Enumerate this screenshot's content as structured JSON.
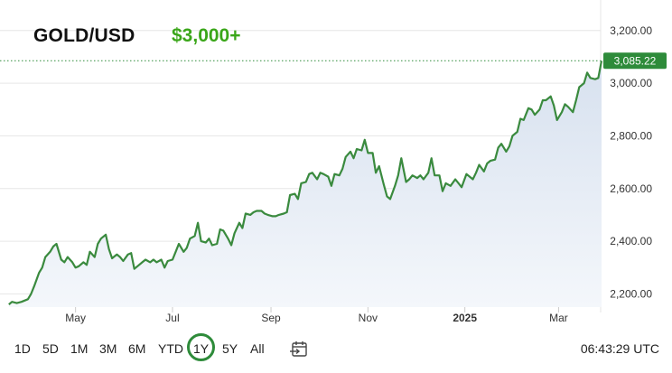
{
  "header": {
    "symbol": "GOLD/USD",
    "annotation": "$3,000+",
    "annotation_color": "#3aa619"
  },
  "toolbar": {
    "ranges": [
      "1D",
      "5D",
      "1M",
      "3M",
      "6M",
      "YTD",
      "1Y",
      "5Y",
      "All"
    ],
    "active_range": "1Y",
    "active_color": "#2e8b3a",
    "calendar_icon": "calendar-arrow-icon",
    "clock_text": "06:43:29 UTC"
  },
  "chart_data": {
    "type": "area",
    "line_color": "#3a8a3e",
    "area_color_top": "#d7e1ef",
    "area_color_bottom": "#f4f7fb",
    "last_value_label": "3,085.22",
    "last_value_badge_color": "#2e8b3a",
    "ylim": [
      2150,
      3230
    ],
    "y_ticks": [
      {
        "value": 2200,
        "label": "2,200.00"
      },
      {
        "value": 2400,
        "label": "2,400.00"
      },
      {
        "value": 2600,
        "label": "2,600.00"
      },
      {
        "value": 2800,
        "label": "2,800.00"
      },
      {
        "value": 3000,
        "label": "3,000.00"
      },
      {
        "value": 3200,
        "label": "3,200.00"
      }
    ],
    "x_ticks": [
      {
        "date": "2024-05-01",
        "label": "May",
        "bold": false
      },
      {
        "date": "2024-07-01",
        "label": "Jul",
        "bold": false
      },
      {
        "date": "2024-09-01",
        "label": "Sep",
        "bold": false
      },
      {
        "date": "2024-11-01",
        "label": "Nov",
        "bold": false
      },
      {
        "date": "2025-01-01",
        "label": "2025",
        "bold": true
      },
      {
        "date": "2025-03-01",
        "label": "Mar",
        "bold": false
      }
    ],
    "xlim": [
      "2024-03-19",
      "2025-04-01"
    ],
    "grid": "horizontal",
    "series": [
      {
        "points": [
          [
            "2024-03-20",
            2160
          ],
          [
            "2024-03-22",
            2170
          ],
          [
            "2024-03-25",
            2165
          ],
          [
            "2024-03-28",
            2170
          ],
          [
            "2024-04-01",
            2180
          ],
          [
            "2024-04-03",
            2200
          ],
          [
            "2024-04-05",
            2230
          ],
          [
            "2024-04-08",
            2280
          ],
          [
            "2024-04-10",
            2300
          ],
          [
            "2024-04-12",
            2340
          ],
          [
            "2024-04-15",
            2360
          ],
          [
            "2024-04-17",
            2380
          ],
          [
            "2024-04-19",
            2390
          ],
          [
            "2024-04-22",
            2330
          ],
          [
            "2024-04-24",
            2320
          ],
          [
            "2024-04-26",
            2340
          ],
          [
            "2024-04-29",
            2320
          ],
          [
            "2024-05-01",
            2300
          ],
          [
            "2024-05-03",
            2305
          ],
          [
            "2024-05-06",
            2320
          ],
          [
            "2024-05-08",
            2310
          ],
          [
            "2024-05-10",
            2360
          ],
          [
            "2024-05-13",
            2340
          ],
          [
            "2024-05-15",
            2390
          ],
          [
            "2024-05-17",
            2410
          ],
          [
            "2024-05-20",
            2425
          ],
          [
            "2024-05-22",
            2370
          ],
          [
            "2024-05-24",
            2335
          ],
          [
            "2024-05-27",
            2350
          ],
          [
            "2024-05-29",
            2340
          ],
          [
            "2024-05-31",
            2325
          ],
          [
            "2024-06-03",
            2350
          ],
          [
            "2024-06-05",
            2355
          ],
          [
            "2024-06-07",
            2295
          ],
          [
            "2024-06-10",
            2310
          ],
          [
            "2024-06-12",
            2320
          ],
          [
            "2024-06-14",
            2330
          ],
          [
            "2024-06-17",
            2320
          ],
          [
            "2024-06-19",
            2330
          ],
          [
            "2024-06-21",
            2320
          ],
          [
            "2024-06-24",
            2330
          ],
          [
            "2024-06-26",
            2300
          ],
          [
            "2024-06-28",
            2325
          ],
          [
            "2024-07-01",
            2330
          ],
          [
            "2024-07-03",
            2360
          ],
          [
            "2024-07-05",
            2390
          ],
          [
            "2024-07-08",
            2360
          ],
          [
            "2024-07-10",
            2375
          ],
          [
            "2024-07-12",
            2410
          ],
          [
            "2024-07-15",
            2420
          ],
          [
            "2024-07-17",
            2470
          ],
          [
            "2024-07-19",
            2400
          ],
          [
            "2024-07-22",
            2395
          ],
          [
            "2024-07-24",
            2410
          ],
          [
            "2024-07-26",
            2385
          ],
          [
            "2024-07-29",
            2390
          ],
          [
            "2024-07-31",
            2445
          ],
          [
            "2024-08-02",
            2440
          ],
          [
            "2024-08-05",
            2410
          ],
          [
            "2024-08-07",
            2385
          ],
          [
            "2024-08-09",
            2430
          ],
          [
            "2024-08-12",
            2470
          ],
          [
            "2024-08-14",
            2450
          ],
          [
            "2024-08-16",
            2505
          ],
          [
            "2024-08-19",
            2500
          ],
          [
            "2024-08-21",
            2510
          ],
          [
            "2024-08-23",
            2515
          ],
          [
            "2024-08-26",
            2515
          ],
          [
            "2024-08-28",
            2505
          ],
          [
            "2024-08-30",
            2500
          ],
          [
            "2024-09-02",
            2495
          ],
          [
            "2024-09-04",
            2495
          ],
          [
            "2024-09-06",
            2500
          ],
          [
            "2024-09-09",
            2505
          ],
          [
            "2024-09-11",
            2510
          ],
          [
            "2024-09-13",
            2575
          ],
          [
            "2024-09-16",
            2580
          ],
          [
            "2024-09-18",
            2560
          ],
          [
            "2024-09-20",
            2620
          ],
          [
            "2024-09-23",
            2625
          ],
          [
            "2024-09-25",
            2655
          ],
          [
            "2024-09-27",
            2660
          ],
          [
            "2024-09-30",
            2635
          ],
          [
            "2024-10-02",
            2660
          ],
          [
            "2024-10-04",
            2655
          ],
          [
            "2024-10-07",
            2645
          ],
          [
            "2024-10-09",
            2610
          ],
          [
            "2024-10-11",
            2655
          ],
          [
            "2024-10-14",
            2650
          ],
          [
            "2024-10-16",
            2675
          ],
          [
            "2024-10-18",
            2720
          ],
          [
            "2024-10-21",
            2740
          ],
          [
            "2024-10-23",
            2715
          ],
          [
            "2024-10-25",
            2750
          ],
          [
            "2024-10-28",
            2745
          ],
          [
            "2024-10-30",
            2785
          ],
          [
            "2024-11-01",
            2735
          ],
          [
            "2024-11-04",
            2735
          ],
          [
            "2024-11-06",
            2660
          ],
          [
            "2024-11-08",
            2685
          ],
          [
            "2024-11-11",
            2615
          ],
          [
            "2024-11-13",
            2570
          ],
          [
            "2024-11-15",
            2560
          ],
          [
            "2024-11-18",
            2610
          ],
          [
            "2024-11-20",
            2650
          ],
          [
            "2024-11-22",
            2715
          ],
          [
            "2024-11-25",
            2625
          ],
          [
            "2024-11-27",
            2635
          ],
          [
            "2024-11-29",
            2650
          ],
          [
            "2024-12-02",
            2640
          ],
          [
            "2024-12-04",
            2650
          ],
          [
            "2024-12-06",
            2635
          ],
          [
            "2024-12-09",
            2660
          ],
          [
            "2024-12-11",
            2715
          ],
          [
            "2024-12-13",
            2650
          ],
          [
            "2024-12-16",
            2650
          ],
          [
            "2024-12-18",
            2590
          ],
          [
            "2024-12-20",
            2620
          ],
          [
            "2024-12-23",
            2610
          ],
          [
            "2024-12-26",
            2635
          ],
          [
            "2024-12-30",
            2605
          ],
          [
            "2025-01-02",
            2655
          ],
          [
            "2025-01-06",
            2635
          ],
          [
            "2025-01-08",
            2660
          ],
          [
            "2025-01-10",
            2690
          ],
          [
            "2025-01-13",
            2665
          ],
          [
            "2025-01-15",
            2695
          ],
          [
            "2025-01-17",
            2705
          ],
          [
            "2025-01-20",
            2710
          ],
          [
            "2025-01-22",
            2755
          ],
          [
            "2025-01-24",
            2770
          ],
          [
            "2025-01-27",
            2740
          ],
          [
            "2025-01-29",
            2760
          ],
          [
            "2025-01-31",
            2800
          ],
          [
            "2025-02-03",
            2815
          ],
          [
            "2025-02-05",
            2865
          ],
          [
            "2025-02-07",
            2860
          ],
          [
            "2025-02-10",
            2905
          ],
          [
            "2025-02-12",
            2900
          ],
          [
            "2025-02-14",
            2880
          ],
          [
            "2025-02-17",
            2900
          ],
          [
            "2025-02-19",
            2935
          ],
          [
            "2025-02-21",
            2935
          ],
          [
            "2025-02-24",
            2950
          ],
          [
            "2025-02-26",
            2915
          ],
          [
            "2025-02-28",
            2860
          ],
          [
            "2025-03-03",
            2890
          ],
          [
            "2025-03-05",
            2920
          ],
          [
            "2025-03-07",
            2910
          ],
          [
            "2025-03-10",
            2890
          ],
          [
            "2025-03-12",
            2935
          ],
          [
            "2025-03-14",
            2985
          ],
          [
            "2025-03-17",
            3000
          ],
          [
            "2025-03-19",
            3040
          ],
          [
            "2025-03-21",
            3020
          ],
          [
            "2025-03-24",
            3015
          ],
          [
            "2025-03-26",
            3020
          ],
          [
            "2025-03-28",
            3085
          ]
        ]
      }
    ]
  }
}
